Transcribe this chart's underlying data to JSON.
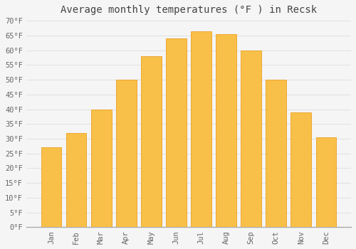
{
  "title": "Average monthly temperatures (°F ) in Recsk",
  "months": [
    "Jan",
    "Feb",
    "Mar",
    "Apr",
    "May",
    "Jun",
    "Jul",
    "Aug",
    "Sep",
    "Oct",
    "Nov",
    "Dec"
  ],
  "values": [
    27,
    32,
    40,
    50,
    58,
    64,
    66.5,
    65.5,
    60,
    50,
    39,
    30.5
  ],
  "bar_color_top": "#F5A623",
  "bar_color_bottom": "#F8C048",
  "bar_edge_color": "#E8950A",
  "ylim": [
    0,
    70
  ],
  "yticks": [
    0,
    5,
    10,
    15,
    20,
    25,
    30,
    35,
    40,
    45,
    50,
    55,
    60,
    65,
    70
  ],
  "ylabel_suffix": "°F",
  "background_color": "#f5f5f5",
  "plot_bg_color": "#f5f5f5",
  "grid_color": "#dddddd",
  "title_fontsize": 10,
  "tick_fontsize": 7.5,
  "title_color": "#444444",
  "tick_color": "#666666",
  "bar_width": 0.82
}
